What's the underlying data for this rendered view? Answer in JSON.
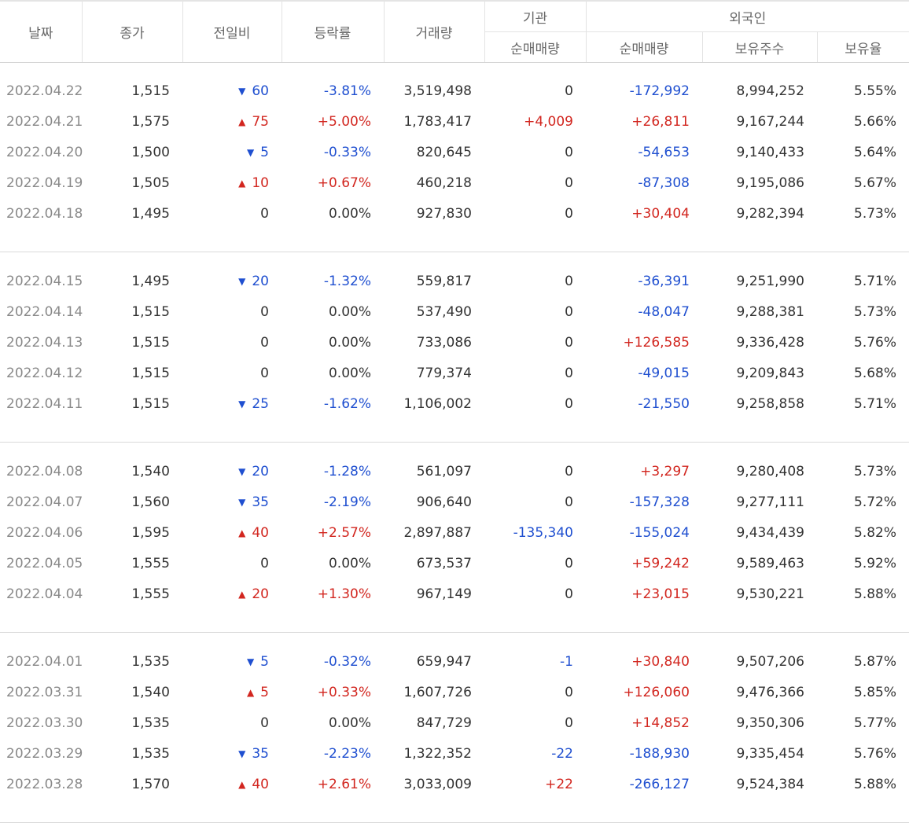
{
  "header": {
    "date": "날짜",
    "close": "종가",
    "change": "전일비",
    "rate": "등락률",
    "volume": "거래량",
    "institution": "기관",
    "foreign": "외국인",
    "inst_net": "순매매량",
    "foreign_net": "순매매량",
    "foreign_holding": "보유주수",
    "foreign_ratio": "보유율"
  },
  "colors": {
    "up": "#d2261f",
    "down": "#1f4fd0"
  },
  "rows": [
    {
      "date": "2022.04.22",
      "close": "1,515",
      "dir": "down",
      "change": "60",
      "rate": "-3.81%",
      "volume": "3,519,498",
      "inst": "0",
      "inst_dir": "none",
      "foreign": "-172,992",
      "foreign_dir": "down",
      "holding": "8,994,252",
      "ratio": "5.55%"
    },
    {
      "date": "2022.04.21",
      "close": "1,575",
      "dir": "up",
      "change": "75",
      "rate": "+5.00%",
      "volume": "1,783,417",
      "inst": "+4,009",
      "inst_dir": "up",
      "foreign": "+26,811",
      "foreign_dir": "up",
      "holding": "9,167,244",
      "ratio": "5.66%"
    },
    {
      "date": "2022.04.20",
      "close": "1,500",
      "dir": "down",
      "change": "5",
      "rate": "-0.33%",
      "volume": "820,645",
      "inst": "0",
      "inst_dir": "none",
      "foreign": "-54,653",
      "foreign_dir": "down",
      "holding": "9,140,433",
      "ratio": "5.64%"
    },
    {
      "date": "2022.04.19",
      "close": "1,505",
      "dir": "up",
      "change": "10",
      "rate": "+0.67%",
      "volume": "460,218",
      "inst": "0",
      "inst_dir": "none",
      "foreign": "-87,308",
      "foreign_dir": "down",
      "holding": "9,195,086",
      "ratio": "5.67%"
    },
    {
      "date": "2022.04.18",
      "close": "1,495",
      "dir": "none",
      "change": "0",
      "rate": "0.00%",
      "volume": "927,830",
      "inst": "0",
      "inst_dir": "none",
      "foreign": "+30,404",
      "foreign_dir": "up",
      "holding": "9,282,394",
      "ratio": "5.73%"
    },
    {
      "date": "2022.04.15",
      "close": "1,495",
      "dir": "down",
      "change": "20",
      "rate": "-1.32%",
      "volume": "559,817",
      "inst": "0",
      "inst_dir": "none",
      "foreign": "-36,391",
      "foreign_dir": "down",
      "holding": "9,251,990",
      "ratio": "5.71%"
    },
    {
      "date": "2022.04.14",
      "close": "1,515",
      "dir": "none",
      "change": "0",
      "rate": "0.00%",
      "volume": "537,490",
      "inst": "0",
      "inst_dir": "none",
      "foreign": "-48,047",
      "foreign_dir": "down",
      "holding": "9,288,381",
      "ratio": "5.73%"
    },
    {
      "date": "2022.04.13",
      "close": "1,515",
      "dir": "none",
      "change": "0",
      "rate": "0.00%",
      "volume": "733,086",
      "inst": "0",
      "inst_dir": "none",
      "foreign": "+126,585",
      "foreign_dir": "up",
      "holding": "9,336,428",
      "ratio": "5.76%"
    },
    {
      "date": "2022.04.12",
      "close": "1,515",
      "dir": "none",
      "change": "0",
      "rate": "0.00%",
      "volume": "779,374",
      "inst": "0",
      "inst_dir": "none",
      "foreign": "-49,015",
      "foreign_dir": "down",
      "holding": "9,209,843",
      "ratio": "5.68%"
    },
    {
      "date": "2022.04.11",
      "close": "1,515",
      "dir": "down",
      "change": "25",
      "rate": "-1.62%",
      "volume": "1,106,002",
      "inst": "0",
      "inst_dir": "none",
      "foreign": "-21,550",
      "foreign_dir": "down",
      "holding": "9,258,858",
      "ratio": "5.71%"
    },
    {
      "date": "2022.04.08",
      "close": "1,540",
      "dir": "down",
      "change": "20",
      "rate": "-1.28%",
      "volume": "561,097",
      "inst": "0",
      "inst_dir": "none",
      "foreign": "+3,297",
      "foreign_dir": "up",
      "holding": "9,280,408",
      "ratio": "5.73%"
    },
    {
      "date": "2022.04.07",
      "close": "1,560",
      "dir": "down",
      "change": "35",
      "rate": "-2.19%",
      "volume": "906,640",
      "inst": "0",
      "inst_dir": "none",
      "foreign": "-157,328",
      "foreign_dir": "down",
      "holding": "9,277,111",
      "ratio": "5.72%"
    },
    {
      "date": "2022.04.06",
      "close": "1,595",
      "dir": "up",
      "change": "40",
      "rate": "+2.57%",
      "volume": "2,897,887",
      "inst": "-135,340",
      "inst_dir": "down",
      "foreign": "-155,024",
      "foreign_dir": "down",
      "holding": "9,434,439",
      "ratio": "5.82%"
    },
    {
      "date": "2022.04.05",
      "close": "1,555",
      "dir": "none",
      "change": "0",
      "rate": "0.00%",
      "volume": "673,537",
      "inst": "0",
      "inst_dir": "none",
      "foreign": "+59,242",
      "foreign_dir": "up",
      "holding": "9,589,463",
      "ratio": "5.92%"
    },
    {
      "date": "2022.04.04",
      "close": "1,555",
      "dir": "up",
      "change": "20",
      "rate": "+1.30%",
      "volume": "967,149",
      "inst": "0",
      "inst_dir": "none",
      "foreign": "+23,015",
      "foreign_dir": "up",
      "holding": "9,530,221",
      "ratio": "5.88%"
    },
    {
      "date": "2022.04.01",
      "close": "1,535",
      "dir": "down",
      "change": "5",
      "rate": "-0.32%",
      "volume": "659,947",
      "inst": "-1",
      "inst_dir": "down",
      "foreign": "+30,840",
      "foreign_dir": "up",
      "holding": "9,507,206",
      "ratio": "5.87%"
    },
    {
      "date": "2022.03.31",
      "close": "1,540",
      "dir": "up",
      "change": "5",
      "rate": "+0.33%",
      "volume": "1,607,726",
      "inst": "0",
      "inst_dir": "none",
      "foreign": "+126,060",
      "foreign_dir": "up",
      "holding": "9,476,366",
      "ratio": "5.85%"
    },
    {
      "date": "2022.03.30",
      "close": "1,535",
      "dir": "none",
      "change": "0",
      "rate": "0.00%",
      "volume": "847,729",
      "inst": "0",
      "inst_dir": "none",
      "foreign": "+14,852",
      "foreign_dir": "up",
      "holding": "9,350,306",
      "ratio": "5.77%"
    },
    {
      "date": "2022.03.29",
      "close": "1,535",
      "dir": "down",
      "change": "35",
      "rate": "-2.23%",
      "volume": "1,322,352",
      "inst": "-22",
      "inst_dir": "down",
      "foreign": "-188,930",
      "foreign_dir": "down",
      "holding": "9,335,454",
      "ratio": "5.76%"
    },
    {
      "date": "2022.03.28",
      "close": "1,570",
      "dir": "up",
      "change": "40",
      "rate": "+2.61%",
      "volume": "3,033,009",
      "inst": "+22",
      "inst_dir": "up",
      "foreign": "-266,127",
      "foreign_dir": "down",
      "holding": "9,524,384",
      "ratio": "5.88%"
    }
  ]
}
